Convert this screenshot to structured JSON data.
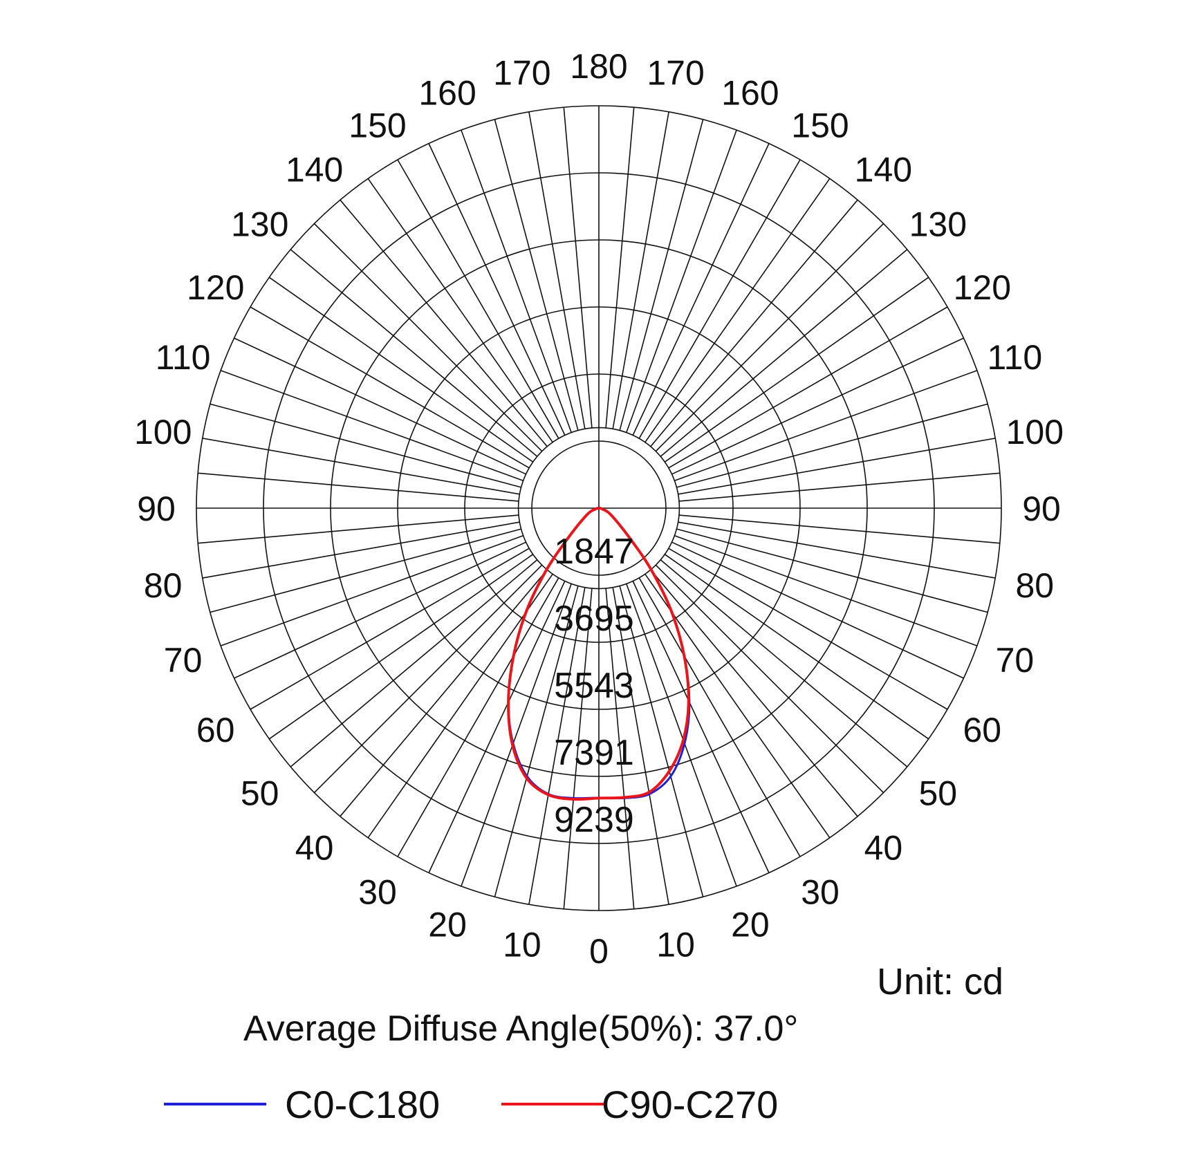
{
  "chart_data": {
    "type": "polar",
    "unit_label": "Unit: cd",
    "note": "Average Diffuse Angle(50%): 37.0°",
    "rmax": 11087,
    "ring_values": [
      1847,
      3695,
      5543,
      7391,
      9239
    ],
    "angle_ticks_right": [
      0,
      10,
      20,
      30,
      40,
      50,
      60,
      70,
      80,
      90,
      100,
      110,
      120,
      130,
      140,
      150,
      160,
      170,
      180
    ],
    "angle_ticks_left": [
      10,
      20,
      30,
      40,
      50,
      60,
      70,
      80,
      90,
      100,
      110,
      120,
      130,
      140,
      150,
      160,
      170
    ],
    "angle_step": 5,
    "series": [
      {
        "name": "C0-C180",
        "color": "#1f1fd6",
        "angles": [
          -90,
          -75,
          -60,
          -45,
          -40,
          -35,
          -30,
          -25,
          -20,
          -15,
          -10,
          -5,
          0,
          5,
          10,
          15,
          20,
          25,
          30,
          35,
          40,
          45,
          60,
          75,
          90
        ],
        "values": [
          0,
          100,
          400,
          1300,
          2300,
          3500,
          4700,
          5900,
          6900,
          7650,
          8000,
          8020,
          7980,
          8020,
          8000,
          7650,
          6900,
          5900,
          4700,
          3500,
          2300,
          1300,
          400,
          100,
          0
        ]
      },
      {
        "name": "C90-C270",
        "color": "#e8161b",
        "angles": [
          -90,
          -75,
          -60,
          -45,
          -40,
          -35,
          -30,
          -25,
          -20,
          -15,
          -10,
          -5,
          0,
          5,
          10,
          15,
          20,
          25,
          30,
          35,
          40,
          45,
          60,
          75,
          90
        ],
        "values": [
          0,
          100,
          400,
          1300,
          2300,
          3500,
          4700,
          5900,
          6950,
          7700,
          8020,
          8050,
          7990,
          8000,
          7950,
          7500,
          6800,
          5850,
          4700,
          3500,
          2300,
          1300,
          400,
          100,
          0
        ]
      }
    ]
  }
}
